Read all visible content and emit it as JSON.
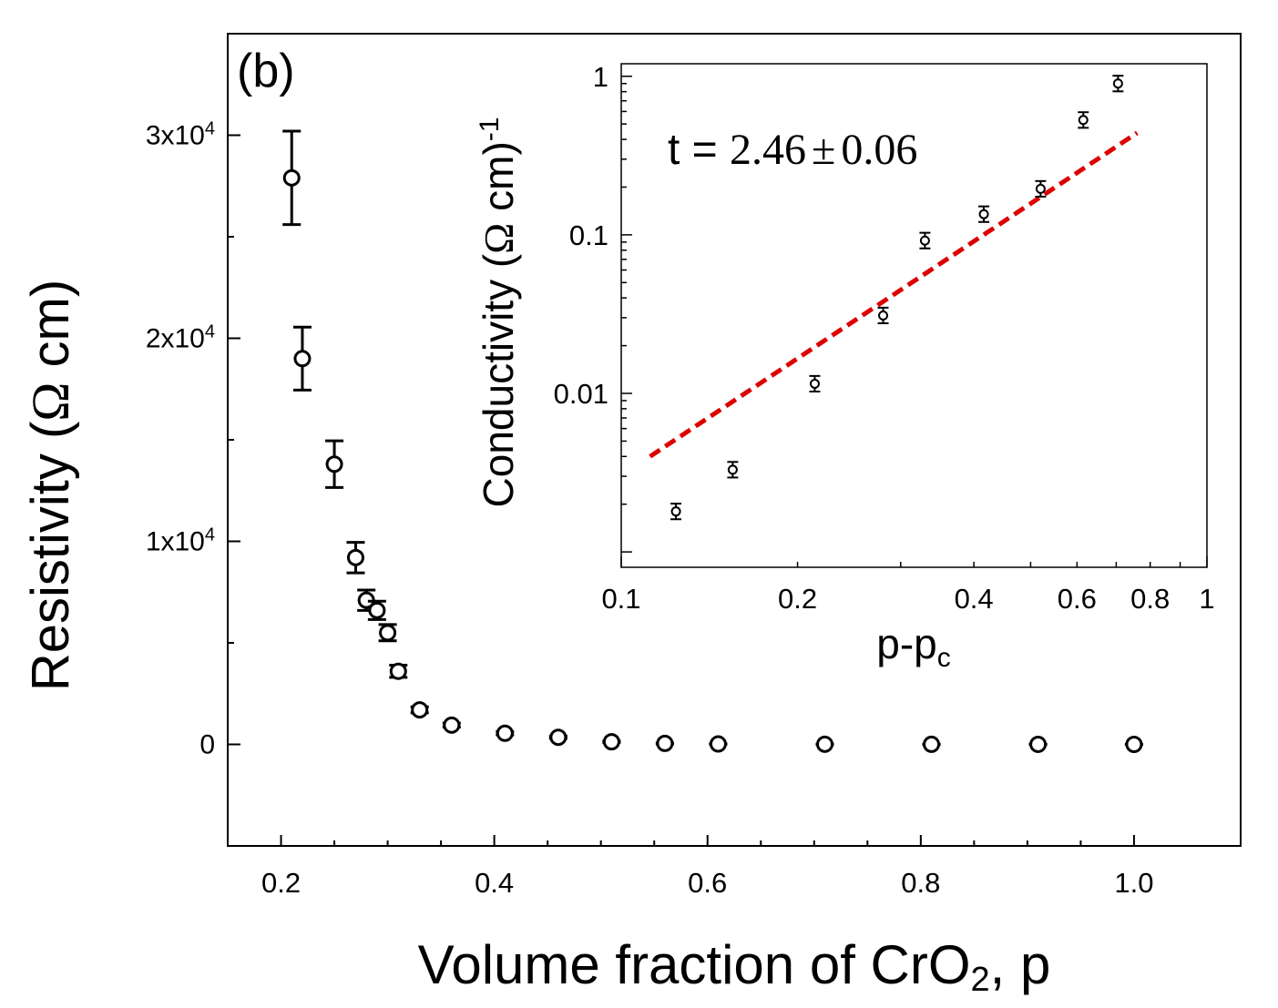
{
  "chart_data": [
    {
      "id": "main",
      "type": "scatter",
      "panel_label": "(b)",
      "title": "",
      "xlabel": {
        "main": "Volume fraction of CrO",
        "sub": "2",
        "tail": ", p"
      },
      "ylabel": {
        "main": "Resistivity (",
        "symbol": "Ω",
        "tail": " cm)"
      },
      "xlim": [
        0.15,
        1.1
      ],
      "ylim": [
        -5000,
        35000
      ],
      "x_ticks": [
        0.2,
        0.4,
        0.6,
        0.8,
        1.0
      ],
      "x_tick_labels": [
        "0.2",
        "0.4",
        "0.6",
        "0.8",
        "1.0"
      ],
      "y_ticks": [
        {
          "value": 0,
          "base": "0",
          "exp": ""
        },
        {
          "value": 10000,
          "base": "1x10",
          "exp": "4"
        },
        {
          "value": 20000,
          "base": "2x10",
          "exp": "4"
        },
        {
          "value": 30000,
          "base": "3x10",
          "exp": "4"
        }
      ],
      "marker": "open-circle",
      "color": "#000000",
      "series": [
        {
          "name": "Resistivity",
          "x": [
            0.21,
            0.22,
            0.25,
            0.27,
            0.28,
            0.29,
            0.3,
            0.31,
            0.33,
            0.36,
            0.41,
            0.46,
            0.51,
            0.56,
            0.61,
            0.71,
            0.81,
            0.91,
            1.0
          ],
          "y": [
            27900,
            19000,
            13800,
            9200,
            7100,
            6600,
            5500,
            3600,
            1700,
            950,
            550,
            350,
            130,
            50,
            20,
            8,
            4,
            2,
            1
          ],
          "err": [
            2300,
            1550,
            1150,
            750,
            500,
            450,
            400,
            300,
            150,
            100,
            80,
            60,
            40,
            20,
            10,
            5,
            3,
            2,
            1
          ]
        }
      ]
    },
    {
      "id": "inset",
      "type": "scatter",
      "scale": "log-log",
      "title": "",
      "xlabel": {
        "main": "p-p",
        "sub": "c"
      },
      "ylabel": {
        "main": "Conductivity (",
        "symbol": "Ω",
        "tail": " cm)",
        "sup": "-1"
      },
      "xlim": [
        0.1,
        1
      ],
      "ylim": [
        0.0008,
        1.2
      ],
      "x_tick_labels": [
        "0.1",
        "0.2",
        "0.4",
        "0.6",
        "0.8",
        "1"
      ],
      "y_tick_labels": [
        "0.01",
        "0.1",
        "1"
      ],
      "annotation": {
        "prefix": "t = ",
        "value": "2.46",
        "pm": "±",
        "error": "0.06"
      },
      "series": [
        {
          "name": "Conductivity",
          "x": [
            0.124,
            0.155,
            0.214,
            0.28,
            0.33,
            0.416,
            0.52,
            0.615,
            0.705
          ],
          "y": [
            0.0018,
            0.0033,
            0.0115,
            0.031,
            0.092,
            0.135,
            0.195,
            0.53,
            0.9
          ],
          "err_factor": 1.12
        },
        {
          "name": "Power-law fit",
          "style": "dashed",
          "color": "#dd0000",
          "x": [
            0.112,
            0.76
          ],
          "y": [
            0.004,
            0.44
          ]
        }
      ]
    }
  ]
}
